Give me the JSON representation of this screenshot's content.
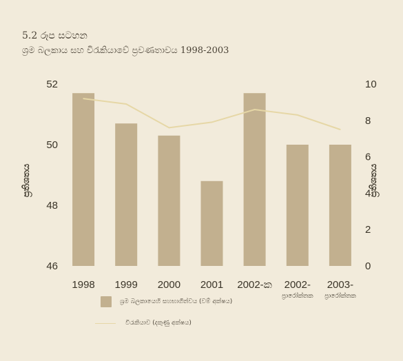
{
  "figure": {
    "number": "5.2 රූප සටහන",
    "title": "ශ්‍රම බලකාය සහ විරැකියාවේ ප්‍රවණතාවය 1998-2003"
  },
  "colors": {
    "bar": "#c2b08f",
    "line": "#e6d7a6",
    "axis_text": "#3a3428"
  },
  "chart_data": {
    "type": "bar",
    "categories": [
      "1998",
      "1999",
      "2000",
      "2001",
      "2002-ක",
      "2002-\nප්‍රාරෝක්තක",
      "2003-\nප්‍රාරෝක්තක"
    ],
    "series": [
      {
        "name": "ශ්‍රම බලකායෙහි සහභාගීත්වය (වම් අක්ෂය)",
        "type": "bar",
        "axis": "left",
        "values": [
          51.7,
          50.7,
          50.3,
          48.8,
          51.7,
          50.0,
          50.0
        ]
      },
      {
        "name": "විරැකියාව (දකුණු අක්ෂය)",
        "type": "line",
        "axis": "right",
        "values": [
          9.2,
          8.9,
          7.6,
          7.9,
          8.6,
          8.3,
          7.5
        ]
      }
    ],
    "ylabel": "ප්‍රතිශතය",
    "y2label": "ප්‍රතිශතය",
    "ylim": [
      46,
      52
    ],
    "y2lim": [
      0,
      10
    ],
    "yticks": [
      46,
      48,
      50,
      52
    ],
    "y2ticks": [
      0,
      2,
      4,
      6,
      8,
      10
    ],
    "grid": false,
    "legend_position": "bottom"
  }
}
